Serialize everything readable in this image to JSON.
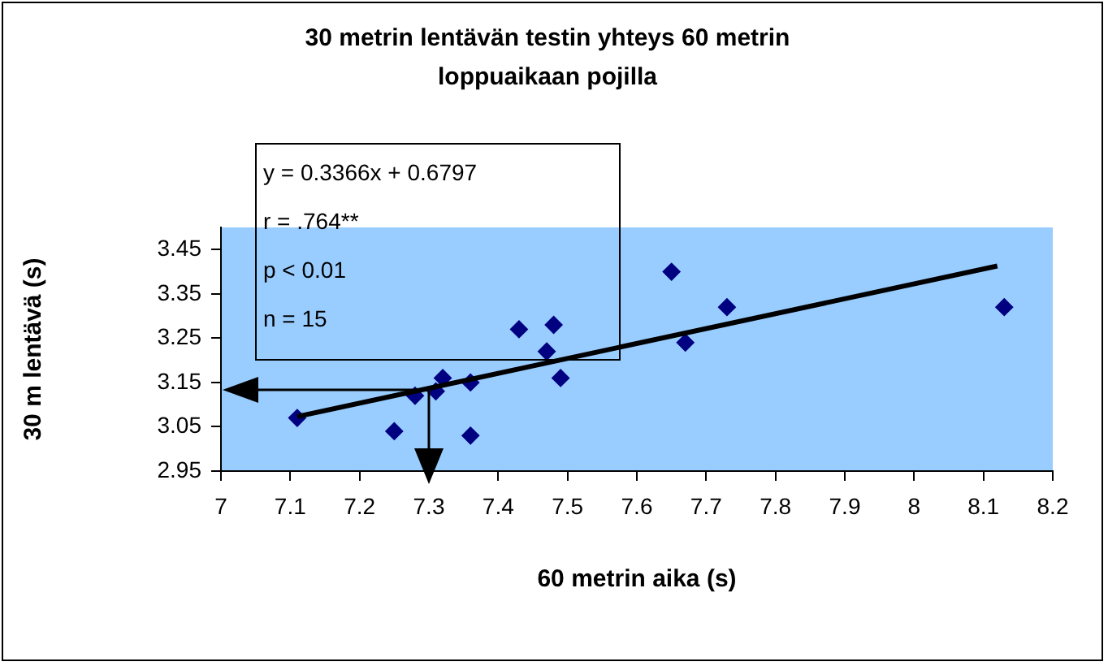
{
  "chart_data": {
    "type": "scatter",
    "title": "30 metrin lentävän testin yhteys 60 metrin loppuaikaan pojilla",
    "xlabel": "60 metrin aika (s)",
    "ylabel": "30 m lentävä (s)",
    "annotations": [
      "y = 0.3366x + 0.6797",
      "r = .764**",
      "p < 0.01",
      "n = 15"
    ],
    "series": [
      {
        "color": "#000080",
        "x": [
          7.11,
          7.25,
          7.28,
          7.31,
          7.32,
          7.36,
          7.36,
          7.43,
          7.47,
          7.48,
          7.49,
          7.65,
          7.67,
          7.73,
          8.13
        ],
        "values": [
          3.07,
          3.04,
          3.12,
          3.13,
          3.16,
          3.03,
          3.15,
          3.27,
          3.22,
          3.28,
          3.16,
          3.4,
          3.24,
          3.32,
          3.32
        ]
      },
      {
        "type": "line",
        "marker": "none",
        "color": "#000000",
        "x": [
          7.11,
          8.12
        ],
        "values": [
          3.073,
          3.413
        ]
      }
    ],
    "xlim": [
      7,
      8.2
    ],
    "xticks": [
      7,
      7.1,
      7.2,
      7.3,
      7.4,
      7.5,
      7.6,
      7.7,
      7.8,
      7.9,
      8,
      8.1,
      8.2
    ],
    "ylim": [
      2.95,
      3.5
    ],
    "yticks": [
      2.95,
      3.05,
      3.15,
      3.25,
      3.35,
      3.45
    ],
    "grid": false,
    "legend": false,
    "marker": "diamond"
  }
}
